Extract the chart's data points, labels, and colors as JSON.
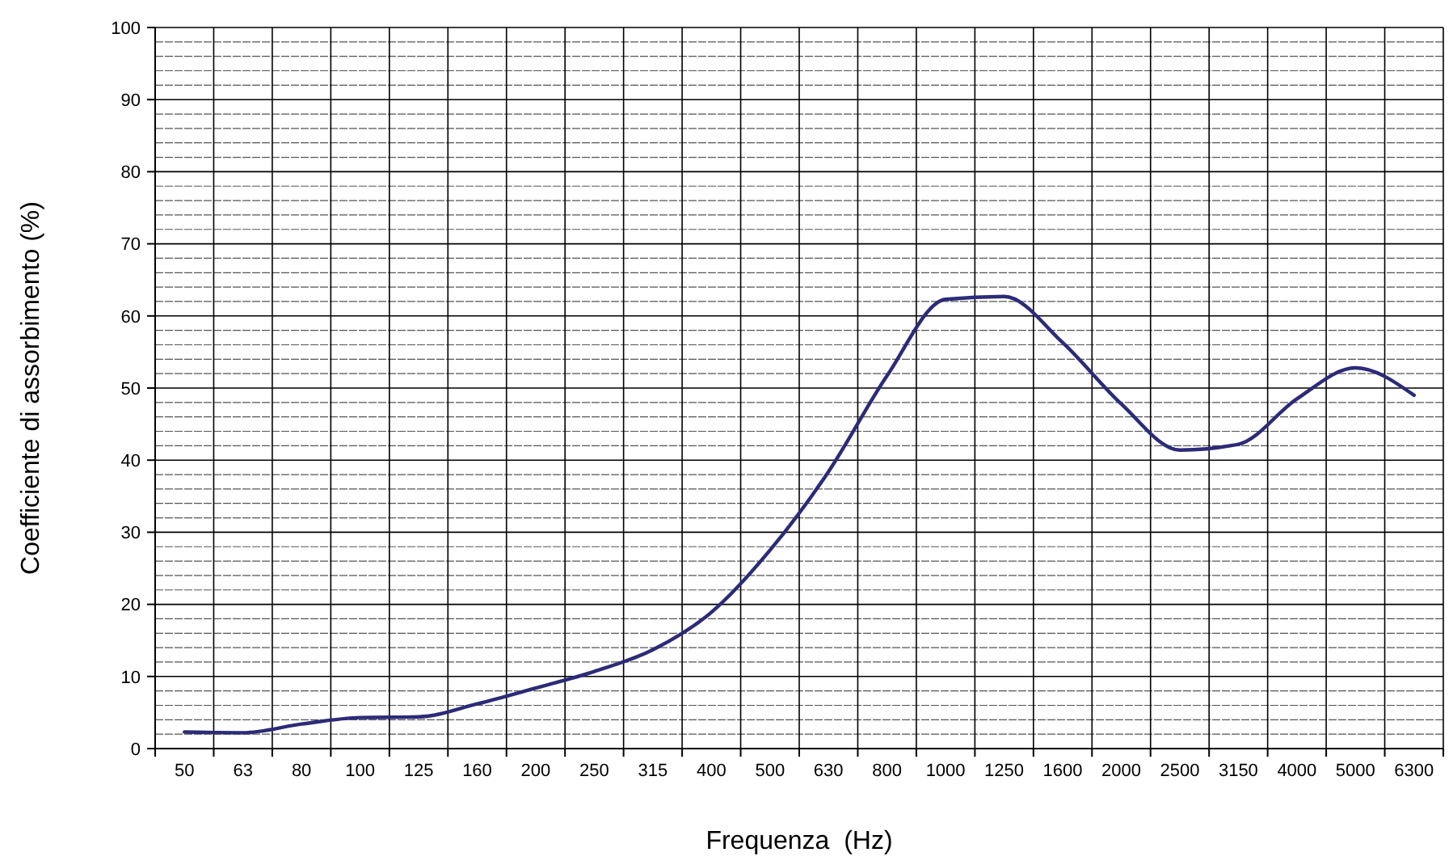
{
  "chart_data": {
    "type": "line",
    "xlabel": "Frequenza  (Hz)",
    "ylabel": "Coefficiente di assorbimento (%)",
    "categories": [
      "50",
      "63",
      "80",
      "100",
      "125",
      "160",
      "200",
      "250",
      "315",
      "400",
      "500",
      "630",
      "800",
      "1000",
      "1250",
      "1600",
      "2000",
      "2500",
      "3150",
      "4000",
      "5000",
      "6300"
    ],
    "series": [
      {
        "color": "#2b2b78",
        "values": [
          2.3,
          2.2,
          3.4,
          4.3,
          4.4,
          6.2,
          8.4,
          10.7,
          13.7,
          18.9,
          27.5,
          38.4,
          51.7,
          62.3,
          62.7,
          56.3,
          47.8,
          41.4,
          42.2,
          48.5,
          52.8,
          49.0
        ]
      }
    ],
    "ylim": [
      0,
      100
    ],
    "yticks": [
      0,
      {
        "value": 2,
        "label": null
      },
      {
        "value": 4,
        "label": null
      },
      {
        "value": 6,
        "label": null
      },
      {
        "value": 8,
        "label": null
      },
      10,
      {
        "value": 12,
        "label": null
      },
      {
        "value": 14,
        "label": null
      },
      {
        "value": 16,
        "label": null
      },
      {
        "value": 18,
        "label": null
      },
      20,
      {
        "value": 22,
        "label": null
      },
      {
        "value": 24,
        "label": null
      },
      {
        "value": 26,
        "label": null
      },
      {
        "value": 28,
        "label": null
      },
      30,
      {
        "value": 32,
        "label": null
      },
      {
        "value": 34,
        "label": null
      },
      {
        "value": 36,
        "label": null
      },
      {
        "value": 38,
        "label": null
      },
      40,
      {
        "value": 42,
        "label": null
      },
      {
        "value": 44,
        "label": null
      },
      {
        "value": 46,
        "label": null
      },
      {
        "value": 48,
        "label": null
      },
      50,
      {
        "value": 52,
        "label": null
      },
      {
        "value": 54,
        "label": null
      },
      {
        "value": 56,
        "label": null
      },
      {
        "value": 58,
        "label": null
      },
      60,
      {
        "value": 62,
        "label": null
      },
      {
        "value": 64,
        "label": null
      },
      {
        "value": 66,
        "label": null
      },
      {
        "value": 68,
        "label": null
      },
      70,
      {
        "value": 72,
        "label": null
      },
      {
        "value": 74,
        "label": null
      },
      {
        "value": 76,
        "label": null
      },
      {
        "value": 78,
        "label": null
      },
      80,
      {
        "value": 82,
        "label": null
      },
      {
        "value": 84,
        "label": null
      },
      {
        "value": 86,
        "label": null
      },
      {
        "value": 88,
        "label": null
      },
      90,
      {
        "value": 92,
        "label": null
      },
      {
        "value": 94,
        "label": null
      },
      {
        "value": 96,
        "label": null
      },
      {
        "value": 98,
        "label": null
      },
      100
    ],
    "grid": true,
    "marker": "none",
    "line_style": "solid"
  }
}
